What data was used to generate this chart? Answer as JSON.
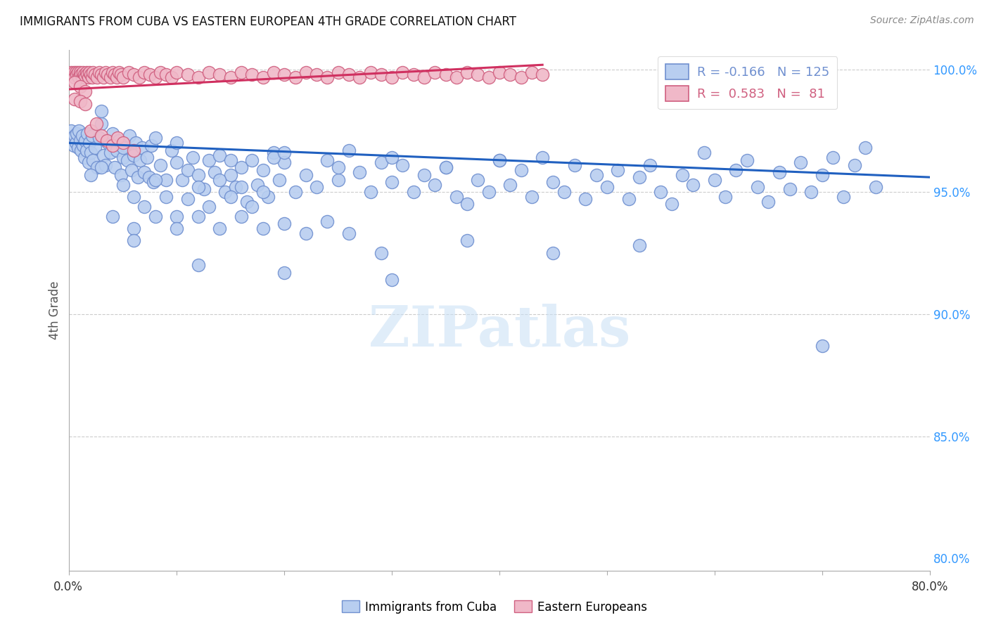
{
  "title": "IMMIGRANTS FROM CUBA VS EASTERN EUROPEAN 4TH GRADE CORRELATION CHART",
  "source": "Source: ZipAtlas.com",
  "ylabel": "4th Grade",
  "xlim": [
    0.0,
    0.8
  ],
  "ylim": [
    0.795,
    1.008
  ],
  "y_ticks": [
    0.8,
    0.85,
    0.9,
    0.95,
    1.0
  ],
  "y_tick_labels": [
    "80.0%",
    "85.0%",
    "90.0%",
    "95.0%",
    "100.0%"
  ],
  "grid_lines": [
    0.85,
    0.9,
    0.95,
    1.0
  ],
  "legend_r1": "R = ",
  "legend_r1_val": "-0.166",
  "legend_n1": "N = ",
  "legend_n1_val": "125",
  "legend_r2": "R =  ",
  "legend_r2_val": "0.583",
  "legend_n2": "N =  ",
  "legend_n2_val": "81",
  "watermark": "ZIPatlas",
  "cuba_color": "#b8cef0",
  "cuba_edge_color": "#7090d0",
  "eastern_color": "#f0b8c8",
  "eastern_edge_color": "#d06080",
  "trend_blue": "#2060c0",
  "trend_pink": "#d03060",
  "blue_trend_x": [
    0.0,
    0.8
  ],
  "blue_trend_y": [
    0.97,
    0.956
  ],
  "pink_trend_x": [
    0.0,
    0.44
  ],
  "pink_trend_y": [
    0.992,
    1.002
  ],
  "cuba_scatter": [
    [
      0.002,
      0.975
    ],
    [
      0.003,
      0.972
    ],
    [
      0.004,
      0.969
    ],
    [
      0.005,
      0.973
    ],
    [
      0.006,
      0.97
    ],
    [
      0.007,
      0.974
    ],
    [
      0.008,
      0.968
    ],
    [
      0.009,
      0.975
    ],
    [
      0.01,
      0.971
    ],
    [
      0.011,
      0.967
    ],
    [
      0.012,
      0.973
    ],
    [
      0.013,
      0.969
    ],
    [
      0.014,
      0.964
    ],
    [
      0.015,
      0.971
    ],
    [
      0.016,
      0.967
    ],
    [
      0.017,
      0.974
    ],
    [
      0.018,
      0.962
    ],
    [
      0.019,
      0.97
    ],
    [
      0.02,
      0.966
    ],
    [
      0.021,
      0.973
    ],
    [
      0.022,
      0.963
    ],
    [
      0.024,
      0.968
    ],
    [
      0.026,
      0.96
    ],
    [
      0.028,
      0.972
    ],
    [
      0.03,
      0.978
    ],
    [
      0.032,
      0.965
    ],
    [
      0.034,
      0.961
    ],
    [
      0.036,
      0.97
    ],
    [
      0.038,
      0.966
    ],
    [
      0.04,
      0.974
    ],
    [
      0.042,
      0.96
    ],
    [
      0.044,
      0.967
    ],
    [
      0.046,
      0.971
    ],
    [
      0.048,
      0.957
    ],
    [
      0.05,
      0.964
    ],
    [
      0.052,
      0.969
    ],
    [
      0.054,
      0.963
    ],
    [
      0.056,
      0.973
    ],
    [
      0.058,
      0.959
    ],
    [
      0.06,
      0.965
    ],
    [
      0.062,
      0.97
    ],
    [
      0.064,
      0.956
    ],
    [
      0.066,
      0.963
    ],
    [
      0.068,
      0.968
    ],
    [
      0.07,
      0.958
    ],
    [
      0.072,
      0.964
    ],
    [
      0.074,
      0.956
    ],
    [
      0.076,
      0.969
    ],
    [
      0.078,
      0.954
    ],
    [
      0.08,
      0.972
    ],
    [
      0.085,
      0.961
    ],
    [
      0.09,
      0.955
    ],
    [
      0.095,
      0.967
    ],
    [
      0.1,
      0.962
    ],
    [
      0.105,
      0.955
    ],
    [
      0.11,
      0.959
    ],
    [
      0.115,
      0.964
    ],
    [
      0.12,
      0.957
    ],
    [
      0.125,
      0.951
    ],
    [
      0.13,
      0.963
    ],
    [
      0.135,
      0.958
    ],
    [
      0.14,
      0.965
    ],
    [
      0.145,
      0.95
    ],
    [
      0.15,
      0.957
    ],
    [
      0.155,
      0.952
    ],
    [
      0.16,
      0.96
    ],
    [
      0.165,
      0.946
    ],
    [
      0.17,
      0.963
    ],
    [
      0.175,
      0.953
    ],
    [
      0.18,
      0.959
    ],
    [
      0.185,
      0.948
    ],
    [
      0.19,
      0.966
    ],
    [
      0.195,
      0.955
    ],
    [
      0.2,
      0.962
    ],
    [
      0.21,
      0.95
    ],
    [
      0.22,
      0.957
    ],
    [
      0.23,
      0.952
    ],
    [
      0.24,
      0.963
    ],
    [
      0.25,
      0.955
    ],
    [
      0.26,
      0.967
    ],
    [
      0.27,
      0.958
    ],
    [
      0.28,
      0.95
    ],
    [
      0.29,
      0.962
    ],
    [
      0.3,
      0.954
    ],
    [
      0.31,
      0.961
    ],
    [
      0.32,
      0.95
    ],
    [
      0.33,
      0.957
    ],
    [
      0.34,
      0.953
    ],
    [
      0.35,
      0.96
    ],
    [
      0.36,
      0.948
    ],
    [
      0.37,
      0.945
    ],
    [
      0.38,
      0.955
    ],
    [
      0.39,
      0.95
    ],
    [
      0.4,
      0.963
    ],
    [
      0.41,
      0.953
    ],
    [
      0.42,
      0.959
    ],
    [
      0.43,
      0.948
    ],
    [
      0.44,
      0.964
    ],
    [
      0.45,
      0.954
    ],
    [
      0.46,
      0.95
    ],
    [
      0.47,
      0.961
    ],
    [
      0.48,
      0.947
    ],
    [
      0.49,
      0.957
    ],
    [
      0.5,
      0.952
    ],
    [
      0.51,
      0.959
    ],
    [
      0.52,
      0.947
    ],
    [
      0.53,
      0.956
    ],
    [
      0.54,
      0.961
    ],
    [
      0.55,
      0.95
    ],
    [
      0.56,
      0.945
    ],
    [
      0.57,
      0.957
    ],
    [
      0.58,
      0.953
    ],
    [
      0.59,
      0.966
    ],
    [
      0.6,
      0.955
    ],
    [
      0.61,
      0.948
    ],
    [
      0.62,
      0.959
    ],
    [
      0.63,
      0.963
    ],
    [
      0.64,
      0.952
    ],
    [
      0.65,
      0.946
    ],
    [
      0.66,
      0.958
    ],
    [
      0.67,
      0.951
    ],
    [
      0.68,
      0.962
    ],
    [
      0.69,
      0.95
    ],
    [
      0.7,
      0.957
    ],
    [
      0.71,
      0.964
    ],
    [
      0.72,
      0.948
    ],
    [
      0.73,
      0.961
    ],
    [
      0.74,
      0.968
    ],
    [
      0.75,
      0.952
    ],
    [
      0.02,
      0.957
    ],
    [
      0.03,
      0.96
    ],
    [
      0.05,
      0.953
    ],
    [
      0.06,
      0.948
    ],
    [
      0.07,
      0.944
    ],
    [
      0.08,
      0.955
    ],
    [
      0.09,
      0.948
    ],
    [
      0.1,
      0.94
    ],
    [
      0.11,
      0.947
    ],
    [
      0.12,
      0.952
    ],
    [
      0.13,
      0.944
    ],
    [
      0.14,
      0.955
    ],
    [
      0.15,
      0.948
    ],
    [
      0.16,
      0.952
    ],
    [
      0.17,
      0.944
    ],
    [
      0.18,
      0.95
    ],
    [
      0.19,
      0.964
    ],
    [
      0.04,
      0.94
    ],
    [
      0.06,
      0.935
    ],
    [
      0.08,
      0.94
    ],
    [
      0.1,
      0.935
    ],
    [
      0.12,
      0.94
    ],
    [
      0.14,
      0.935
    ],
    [
      0.16,
      0.94
    ],
    [
      0.18,
      0.935
    ],
    [
      0.2,
      0.937
    ],
    [
      0.22,
      0.933
    ],
    [
      0.24,
      0.938
    ],
    [
      0.26,
      0.933
    ],
    [
      0.05,
      0.968
    ],
    [
      0.1,
      0.97
    ],
    [
      0.15,
      0.963
    ],
    [
      0.2,
      0.966
    ],
    [
      0.25,
      0.96
    ],
    [
      0.3,
      0.964
    ],
    [
      0.35,
      0.96
    ],
    [
      0.4,
      0.963
    ],
    [
      0.03,
      0.983
    ],
    [
      0.06,
      0.93
    ],
    [
      0.12,
      0.92
    ],
    [
      0.29,
      0.925
    ],
    [
      0.37,
      0.93
    ],
    [
      0.45,
      0.925
    ],
    [
      0.53,
      0.928
    ],
    [
      0.2,
      0.917
    ],
    [
      0.3,
      0.914
    ],
    [
      0.7,
      0.887
    ]
  ],
  "eastern_scatter": [
    [
      0.002,
      0.999
    ],
    [
      0.003,
      0.998
    ],
    [
      0.004,
      0.999
    ],
    [
      0.005,
      0.997
    ],
    [
      0.006,
      0.999
    ],
    [
      0.007,
      0.998
    ],
    [
      0.008,
      0.999
    ],
    [
      0.009,
      0.997
    ],
    [
      0.01,
      0.999
    ],
    [
      0.011,
      0.998
    ],
    [
      0.012,
      0.997
    ],
    [
      0.013,
      0.999
    ],
    [
      0.014,
      0.998
    ],
    [
      0.015,
      0.997
    ],
    [
      0.016,
      0.999
    ],
    [
      0.017,
      0.998
    ],
    [
      0.018,
      0.997
    ],
    [
      0.019,
      0.999
    ],
    [
      0.02,
      0.998
    ],
    [
      0.021,
      0.997
    ],
    [
      0.022,
      0.999
    ],
    [
      0.024,
      0.998
    ],
    [
      0.026,
      0.997
    ],
    [
      0.028,
      0.999
    ],
    [
      0.03,
      0.998
    ],
    [
      0.032,
      0.997
    ],
    [
      0.034,
      0.999
    ],
    [
      0.036,
      0.998
    ],
    [
      0.038,
      0.997
    ],
    [
      0.04,
      0.999
    ],
    [
      0.042,
      0.998
    ],
    [
      0.044,
      0.997
    ],
    [
      0.046,
      0.999
    ],
    [
      0.048,
      0.998
    ],
    [
      0.05,
      0.997
    ],
    [
      0.055,
      0.999
    ],
    [
      0.06,
      0.998
    ],
    [
      0.065,
      0.997
    ],
    [
      0.07,
      0.999
    ],
    [
      0.075,
      0.998
    ],
    [
      0.08,
      0.997
    ],
    [
      0.085,
      0.999
    ],
    [
      0.09,
      0.998
    ],
    [
      0.095,
      0.997
    ],
    [
      0.1,
      0.999
    ],
    [
      0.11,
      0.998
    ],
    [
      0.12,
      0.997
    ],
    [
      0.13,
      0.999
    ],
    [
      0.14,
      0.998
    ],
    [
      0.15,
      0.997
    ],
    [
      0.16,
      0.999
    ],
    [
      0.17,
      0.998
    ],
    [
      0.18,
      0.997
    ],
    [
      0.19,
      0.999
    ],
    [
      0.2,
      0.998
    ],
    [
      0.21,
      0.997
    ],
    [
      0.22,
      0.999
    ],
    [
      0.23,
      0.998
    ],
    [
      0.24,
      0.997
    ],
    [
      0.25,
      0.999
    ],
    [
      0.26,
      0.998
    ],
    [
      0.27,
      0.997
    ],
    [
      0.28,
      0.999
    ],
    [
      0.29,
      0.998
    ],
    [
      0.3,
      0.997
    ],
    [
      0.31,
      0.999
    ],
    [
      0.32,
      0.998
    ],
    [
      0.33,
      0.997
    ],
    [
      0.34,
      0.999
    ],
    [
      0.35,
      0.998
    ],
    [
      0.36,
      0.997
    ],
    [
      0.37,
      0.999
    ],
    [
      0.38,
      0.998
    ],
    [
      0.39,
      0.997
    ],
    [
      0.4,
      0.999
    ],
    [
      0.41,
      0.998
    ],
    [
      0.42,
      0.997
    ],
    [
      0.43,
      0.999
    ],
    [
      0.44,
      0.998
    ],
    [
      0.005,
      0.995
    ],
    [
      0.01,
      0.993
    ],
    [
      0.015,
      0.991
    ],
    [
      0.02,
      0.975
    ],
    [
      0.025,
      0.978
    ],
    [
      0.03,
      0.973
    ],
    [
      0.035,
      0.971
    ],
    [
      0.04,
      0.969
    ],
    [
      0.045,
      0.972
    ],
    [
      0.05,
      0.97
    ],
    [
      0.06,
      0.967
    ],
    [
      0.005,
      0.988
    ],
    [
      0.01,
      0.987
    ],
    [
      0.015,
      0.986
    ]
  ]
}
